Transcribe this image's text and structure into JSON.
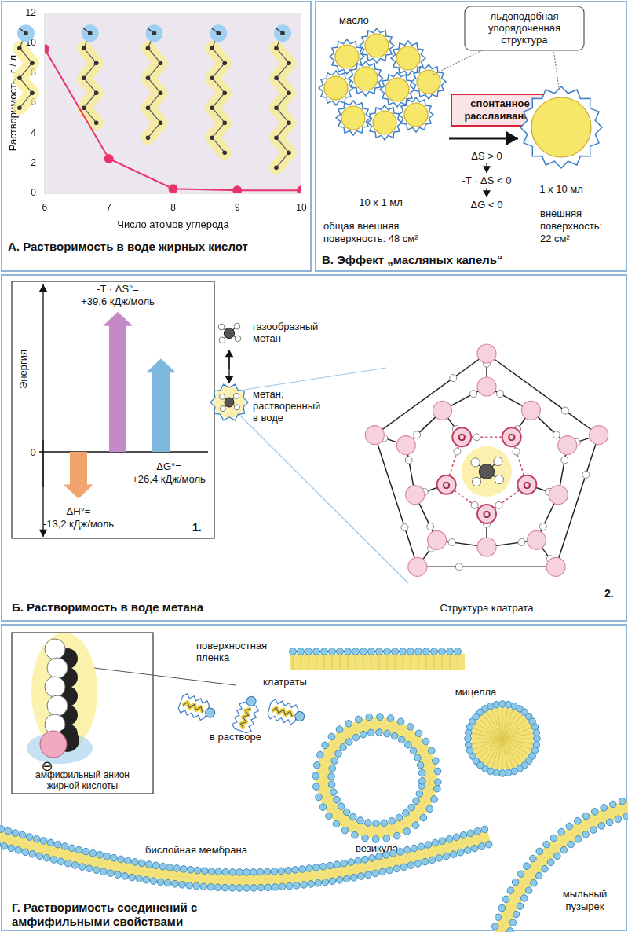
{
  "chart_data": {
    "type": "line",
    "title": "А. Растворимость в воде жирных кислот",
    "x_label": "Число атомов углерода",
    "y_label": "Растворимость, г / л",
    "categories": [
      "6",
      "7",
      "8",
      "9",
      "10"
    ],
    "values": [
      9.6,
      2.3,
      0.3,
      0.2,
      0.2
    ],
    "color": "#e8336d",
    "marker": "circle",
    "ylim": [
      0,
      12
    ],
    "yticks": [
      0,
      2,
      4,
      6,
      8,
      10,
      12
    ],
    "grid": false
  },
  "oil_drops": {
    "title": "В. Эффект „масляных капель“",
    "oil": "масло",
    "callout": [
      "льдоподобная",
      "упорядоченная",
      "структура"
    ],
    "process": [
      "спонтанное",
      "расслаивание"
    ],
    "thermo": [
      "ΔS > 0",
      "-T · ΔS < 0",
      "ΔG < 0"
    ],
    "left": {
      "count_label": "10 x 1 мл",
      "surface": [
        "общая внешняя",
        "поверхность: 48 см²"
      ]
    },
    "right": {
      "count_label": "1 x 10 мл",
      "surface": [
        "внешняя",
        "поверхность:",
        "22 см²"
      ]
    }
  },
  "methane": {
    "title": "Б. Растворимость в воде метана",
    "energy_axis": "Энергия",
    "zero": 0,
    "diagram_number": "1.",
    "arrows": [
      {
        "symbol": "-T · ΔS°=",
        "value": 39.6,
        "label": "+39,6 кДж/моль",
        "color": "#c48ac8"
      },
      {
        "symbol": "ΔG°=",
        "value": 26.4,
        "label": "+26,4 кДж/моль",
        "color": "#7cb8de"
      },
      {
        "symbol": "ΔH°=",
        "value": -13.2,
        "label": "-13,2 кДж/моль",
        "color": "#f2a46e"
      }
    ],
    "gas": [
      "газообразный",
      "метан"
    ],
    "dissolved": [
      "метан,",
      "растворенный",
      "в воде"
    ],
    "clathrate": {
      "label": "Структура клатрата",
      "number": "2.",
      "atom": "O"
    }
  },
  "amphiphiles": {
    "title": [
      "Г. Растворимость соединений с",
      "амфифильными свойствами"
    ],
    "anion": [
      "амфифильный анион",
      "жирной кислоты"
    ],
    "charge": "⊖",
    "film": [
      "поверхностная",
      "пленка"
    ],
    "clathrates": "клатраты",
    "solution": "в растворе",
    "micelle": "мицелла",
    "vesicle": "везикула",
    "membrane": "бислойная мембрана",
    "bubble": [
      "мыльный",
      "пузырек"
    ]
  }
}
